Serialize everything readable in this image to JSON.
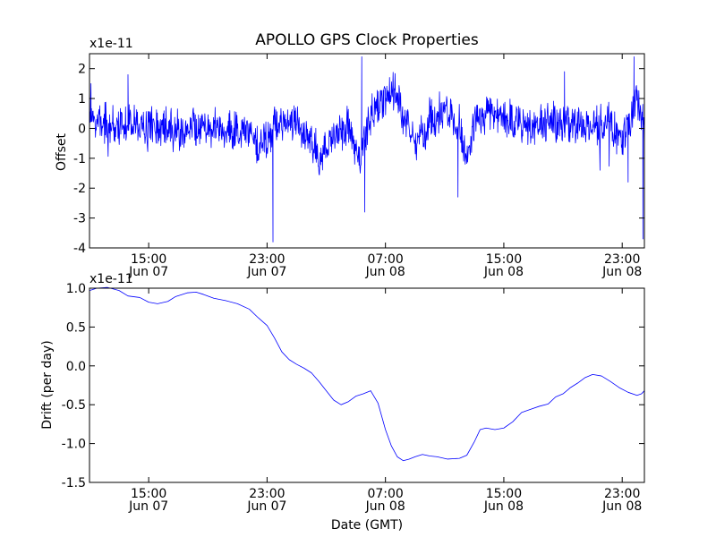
{
  "colors": {
    "series": "#0000ff",
    "axes": "#000000",
    "background": "#ffffff"
  },
  "chart_data": [
    {
      "type": "line",
      "title": "APOLLO GPS Clock Properties",
      "xlabel": "",
      "ylabel": "Offset",
      "offset_text": "x1e-11",
      "x_unit": "hours since 2014-06-07 11:00 GMT",
      "xlim": [
        0,
        37.5
      ],
      "ylim": [
        -4,
        2.5
      ],
      "yticks": [
        -4,
        -3,
        -2,
        -1,
        0,
        1,
        2
      ],
      "ytick_labels": [
        "-4",
        "-3",
        "-2",
        "-1",
        "0",
        "1",
        "2"
      ],
      "xticks": [
        {
          "x": 4,
          "time": "15:00",
          "date": "Jun 07"
        },
        {
          "x": 12,
          "time": "23:00",
          "date": "Jun 07"
        },
        {
          "x": 20,
          "time": "07:00",
          "date": "Jun 08"
        },
        {
          "x": 28,
          "time": "15:00",
          "date": "Jun 08"
        },
        {
          "x": 36,
          "time": "23:00",
          "date": "Jun 08"
        }
      ],
      "series": [
        {
          "name": "Offset",
          "noise_amplitude": 0.55,
          "baseline": [
            [
              0,
              0.3
            ],
            [
              1,
              0.1
            ],
            [
              3,
              0.2
            ],
            [
              4,
              0.0
            ],
            [
              5,
              0.1
            ],
            [
              6,
              -0.1
            ],
            [
              7,
              0.0
            ],
            [
              8,
              0.2
            ],
            [
              9,
              -0.1
            ],
            [
              10,
              0.0
            ],
            [
              11,
              -0.2
            ],
            [
              11.5,
              -0.6
            ],
            [
              12,
              -0.4
            ],
            [
              12.5,
              0.1
            ],
            [
              13,
              0.2
            ],
            [
              14,
              0.2
            ],
            [
              15,
              -0.5
            ],
            [
              15.5,
              -1.0
            ],
            [
              16,
              -0.6
            ],
            [
              17,
              0.0
            ],
            [
              17.5,
              0.1
            ],
            [
              18,
              -0.7
            ],
            [
              18.3,
              -1.0
            ],
            [
              18.6,
              -0.2
            ],
            [
              19,
              0.3
            ],
            [
              19.5,
              0.6
            ],
            [
              20,
              1.1
            ],
            [
              20.4,
              1.4
            ],
            [
              21,
              0.8
            ],
            [
              21.5,
              0.0
            ],
            [
              22,
              -0.6
            ],
            [
              22.5,
              -0.3
            ],
            [
              23,
              0.3
            ],
            [
              24,
              0.6
            ],
            [
              25,
              0.0
            ],
            [
              25.5,
              -1.0
            ],
            [
              26,
              0.1
            ],
            [
              27,
              0.6
            ],
            [
              28,
              0.2
            ],
            [
              29,
              0.2
            ],
            [
              30,
              0.0
            ],
            [
              31,
              0.3
            ],
            [
              32,
              0.0
            ],
            [
              33,
              0.2
            ],
            [
              34,
              0.1
            ],
            [
              35,
              0.3
            ],
            [
              36,
              -0.6
            ],
            [
              37,
              1.0
            ],
            [
              37.5,
              0.0
            ]
          ],
          "spikes": [
            [
              0.1,
              1.5
            ],
            [
              2.6,
              1.8
            ],
            [
              12.4,
              -3.8
            ],
            [
              18.4,
              2.4
            ],
            [
              18.6,
              -2.8
            ],
            [
              24.9,
              -2.3
            ],
            [
              32.1,
              1.9
            ],
            [
              36.4,
              -1.8
            ],
            [
              36.8,
              2.4
            ],
            [
              37.4,
              -3.7
            ]
          ]
        }
      ]
    },
    {
      "type": "line",
      "title": "",
      "xlabel": "Date (GMT)",
      "ylabel": "Drift (per day)",
      "offset_text": "x1e-11",
      "x_unit": "hours since 2014-06-07 11:00 GMT",
      "xlim": [
        0,
        37.5
      ],
      "ylim": [
        -1.5,
        1.0
      ],
      "yticks": [
        -1.5,
        -1.0,
        -0.5,
        0.0,
        0.5,
        1.0
      ],
      "ytick_labels": [
        "-1.5",
        "-1.0",
        "-0.5",
        "0.0",
        "0.5",
        "1.0"
      ],
      "xticks": [
        {
          "x": 4,
          "time": "15:00",
          "date": "Jun 07"
        },
        {
          "x": 12,
          "time": "23:00",
          "date": "Jun 07"
        },
        {
          "x": 20,
          "time": "07:00",
          "date": "Jun 08"
        },
        {
          "x": 28,
          "time": "15:00",
          "date": "Jun 08"
        },
        {
          "x": 36,
          "time": "23:00",
          "date": "Jun 08"
        }
      ],
      "series": [
        {
          "name": "Drift",
          "points": [
            [
              0,
              0.97
            ],
            [
              0.5,
              1.0
            ],
            [
              1.2,
              1.01
            ],
            [
              2,
              0.97
            ],
            [
              2.6,
              0.9
            ],
            [
              3.4,
              0.88
            ],
            [
              4,
              0.82
            ],
            [
              4.6,
              0.8
            ],
            [
              5.3,
              0.83
            ],
            [
              5.8,
              0.89
            ],
            [
              6.6,
              0.94
            ],
            [
              7.2,
              0.95
            ],
            [
              7.7,
              0.92
            ],
            [
              8.4,
              0.87
            ],
            [
              9.2,
              0.84
            ],
            [
              10,
              0.8
            ],
            [
              10.8,
              0.73
            ],
            [
              11.4,
              0.62
            ],
            [
              12,
              0.52
            ],
            [
              12.5,
              0.36
            ],
            [
              13,
              0.18
            ],
            [
              13.5,
              0.08
            ],
            [
              14,
              0.02
            ],
            [
              14.5,
              -0.03
            ],
            [
              15,
              -0.09
            ],
            [
              15.5,
              -0.2
            ],
            [
              16,
              -0.32
            ],
            [
              16.5,
              -0.44
            ],
            [
              17,
              -0.5
            ],
            [
              17.5,
              -0.46
            ],
            [
              18,
              -0.39
            ],
            [
              18.5,
              -0.36
            ],
            [
              19,
              -0.32
            ],
            [
              19.5,
              -0.48
            ],
            [
              20,
              -0.82
            ],
            [
              20.4,
              -1.03
            ],
            [
              20.8,
              -1.17
            ],
            [
              21.2,
              -1.22
            ],
            [
              21.6,
              -1.2
            ],
            [
              22,
              -1.17
            ],
            [
              22.5,
              -1.14
            ],
            [
              23,
              -1.16
            ],
            [
              23.5,
              -1.17
            ],
            [
              24.2,
              -1.2
            ],
            [
              25,
              -1.19
            ],
            [
              25.5,
              -1.15
            ],
            [
              26,
              -0.98
            ],
            [
              26.4,
              -0.82
            ],
            [
              26.8,
              -0.8
            ],
            [
              27.4,
              -0.82
            ],
            [
              28,
              -0.8
            ],
            [
              28.6,
              -0.72
            ],
            [
              29.2,
              -0.6
            ],
            [
              29.8,
              -0.56
            ],
            [
              30.4,
              -0.52
            ],
            [
              31,
              -0.49
            ],
            [
              31.5,
              -0.4
            ],
            [
              32,
              -0.36
            ],
            [
              32.5,
              -0.28
            ],
            [
              33,
              -0.22
            ],
            [
              33.5,
              -0.15
            ],
            [
              34,
              -0.11
            ],
            [
              34.6,
              -0.13
            ],
            [
              35.2,
              -0.2
            ],
            [
              35.8,
              -0.28
            ],
            [
              36.4,
              -0.34
            ],
            [
              37,
              -0.38
            ],
            [
              37.3,
              -0.36
            ],
            [
              37.5,
              -0.32
            ]
          ]
        }
      ]
    }
  ]
}
